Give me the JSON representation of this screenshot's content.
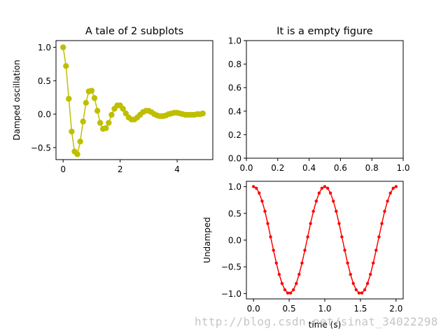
{
  "colors": {
    "damped": "#bfbf00",
    "undamped": "#ff0000",
    "axis": "#000000"
  },
  "watermark": "http://blog.csdn.net/sinat_34022298",
  "chart_data": [
    {
      "id": "damped",
      "type": "line",
      "title": "A tale of 2 subplots",
      "xlabel": "",
      "ylabel": "Damped oscillation",
      "xlim": [
        -0.25,
        5.25
      ],
      "ylim": [
        -0.68,
        1.1
      ],
      "xticks": [
        0,
        2,
        4
      ],
      "yticks": [
        -0.5,
        0.0,
        0.5,
        1.0
      ],
      "xtick_labels": [
        "0",
        "2",
        "4"
      ],
      "ytick_labels": [
        "−0.5",
        "0.0",
        "0.5",
        "1.0"
      ],
      "marker": "circle",
      "x": [
        0,
        0.1,
        0.2,
        0.3,
        0.4,
        0.5,
        0.6,
        0.7,
        0.8,
        0.9,
        1.0,
        1.1,
        1.2,
        1.3,
        1.4,
        1.5,
        1.6,
        1.7,
        1.8,
        1.9,
        2.0,
        2.1,
        2.2,
        2.3,
        2.4,
        2.5,
        2.6,
        2.7,
        2.8,
        2.9,
        3.0,
        3.1,
        3.2,
        3.3,
        3.4,
        3.5,
        3.6,
        3.7,
        3.8,
        3.9,
        4.0,
        4.1,
        4.2,
        4.3,
        4.4,
        4.5,
        4.6,
        4.7,
        4.8,
        4.9
      ],
      "y": [
        1.0,
        0.72,
        0.23,
        -0.26,
        -0.56,
        -0.6,
        -0.41,
        -0.11,
        0.17,
        0.34,
        0.35,
        0.24,
        0.05,
        -0.13,
        -0.22,
        -0.21,
        -0.13,
        -0.01,
        0.08,
        0.13,
        0.13,
        0.08,
        0.01,
        -0.05,
        -0.08,
        -0.08,
        -0.05,
        -0.01,
        0.03,
        0.05,
        0.05,
        0.03,
        0.0,
        -0.02,
        -0.03,
        -0.03,
        -0.02,
        0.0,
        0.01,
        0.02,
        0.02,
        0.01,
        0.0,
        -0.01,
        -0.01,
        -0.01,
        -0.01,
        0.0,
        0.0,
        0.01
      ]
    },
    {
      "id": "empty",
      "type": "line",
      "title": "It is a empty figure",
      "xlabel": "",
      "ylabel": "",
      "xlim": [
        0,
        1
      ],
      "ylim": [
        0,
        1
      ],
      "xticks": [
        0,
        0.2,
        0.4,
        0.6,
        0.8,
        1.0
      ],
      "yticks": [
        0,
        0.2,
        0.4,
        0.6,
        0.8,
        1.0
      ],
      "xtick_labels": [
        "0.0",
        "0.2",
        "0.4",
        "0.6",
        "0.8",
        "1.0"
      ],
      "ytick_labels": [
        "0.0",
        "0.2",
        "0.4",
        "0.6",
        "0.8",
        "1.0"
      ],
      "x": [],
      "y": []
    },
    {
      "id": "undamped",
      "type": "line",
      "title": "",
      "xlabel": "time (s)",
      "ylabel": "Undamped",
      "xlim": [
        -0.1,
        2.1
      ],
      "ylim": [
        -1.1,
        1.1
      ],
      "xticks": [
        0,
        0.5,
        1.0,
        1.5,
        2.0
      ],
      "yticks": [
        -1.0,
        -0.5,
        0.0,
        0.5,
        1.0
      ],
      "xtick_labels": [
        "0.0",
        "0.5",
        "1.0",
        "1.5",
        "2.0"
      ],
      "ytick_labels": [
        "−1.0",
        "−0.5",
        "0.0",
        "0.5",
        "1.0"
      ],
      "marker": "dot",
      "x": [
        0.0,
        0.04,
        0.08,
        0.12,
        0.16,
        0.2,
        0.24,
        0.28,
        0.32,
        0.36,
        0.4,
        0.44,
        0.48,
        0.52,
        0.56,
        0.6,
        0.64,
        0.68,
        0.72,
        0.76,
        0.8,
        0.84,
        0.88,
        0.92,
        0.96,
        1.0,
        1.04,
        1.08,
        1.12,
        1.16,
        1.2,
        1.24,
        1.28,
        1.32,
        1.36,
        1.4,
        1.44,
        1.48,
        1.52,
        1.56,
        1.6,
        1.64,
        1.68,
        1.72,
        1.76,
        1.8,
        1.84,
        1.88,
        1.92,
        1.96,
        2.0
      ],
      "y": [
        1.0,
        0.97,
        0.88,
        0.73,
        0.54,
        0.31,
        0.06,
        -0.19,
        -0.43,
        -0.64,
        -0.81,
        -0.93,
        -0.99,
        -0.99,
        -0.93,
        -0.81,
        -0.64,
        -0.43,
        -0.19,
        0.06,
        0.31,
        0.54,
        0.73,
        0.88,
        0.97,
        1.0,
        0.97,
        0.88,
        0.73,
        0.54,
        0.31,
        0.06,
        -0.19,
        -0.43,
        -0.64,
        -0.81,
        -0.93,
        -0.99,
        -0.99,
        -0.93,
        -0.81,
        -0.64,
        -0.43,
        -0.19,
        0.06,
        0.31,
        0.54,
        0.73,
        0.88,
        0.97,
        1.0
      ]
    }
  ]
}
